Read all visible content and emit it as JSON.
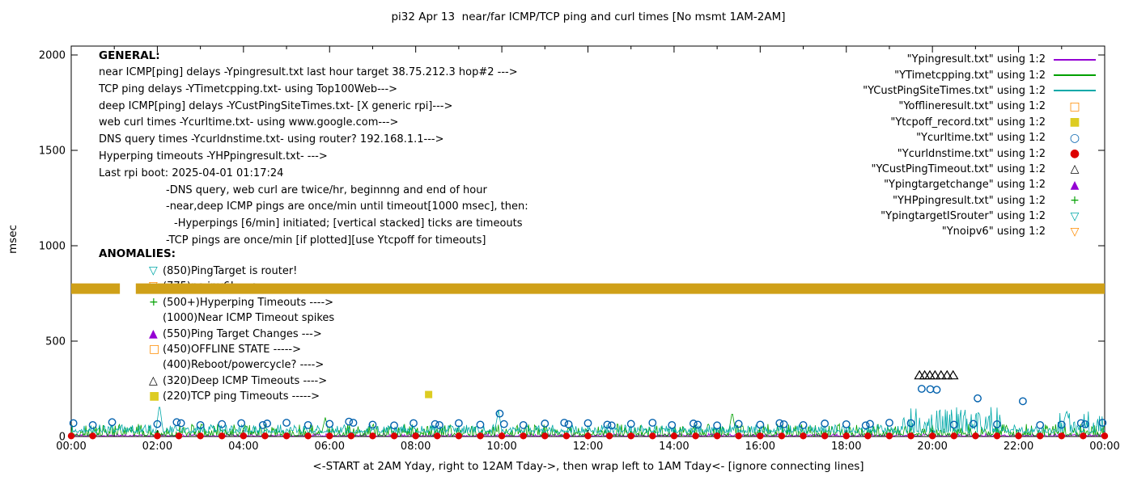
{
  "chart_data": {
    "type": "line",
    "title": "pi32 Apr 13  near/far ICMP/TCP ping and curl times [No msmt 1AM-2AM]",
    "xlabel": "<-START at 2AM Yday, right to 12AM Tday->, then wrap left to 1AM Tday<- [ignore connecting lines]",
    "ylabel": "msec",
    "xlim": [
      0,
      24
    ],
    "ylim": [
      0,
      2000
    ],
    "grid": false,
    "legend_position": "top-right",
    "xticks": [
      {
        "v": 0,
        "label": "00:00"
      },
      {
        "v": 2,
        "label": "02:00"
      },
      {
        "v": 4,
        "label": "04:00"
      },
      {
        "v": 6,
        "label": "06:00"
      },
      {
        "v": 8,
        "label": "08:00"
      },
      {
        "v": 10,
        "label": "10:00"
      },
      {
        "v": 12,
        "label": "12:00"
      },
      {
        "v": 14,
        "label": "14:00"
      },
      {
        "v": 16,
        "label": "16:00"
      },
      {
        "v": 18,
        "label": "18:00"
      },
      {
        "v": 20,
        "label": "20:00"
      },
      {
        "v": 22,
        "label": "22:00"
      },
      {
        "v": 24,
        "label": "00:00"
      }
    ],
    "yticks": [
      {
        "v": 0,
        "label": "0"
      },
      {
        "v": 500,
        "label": "500"
      },
      {
        "v": 1000,
        "label": "1000"
      },
      {
        "v": 1500,
        "label": "1500"
      },
      {
        "v": 2000,
        "label": "2000"
      }
    ],
    "series": [
      {
        "key": "near_icmp",
        "legend_label": "\"Ypingresult.txt\" using 1:2",
        "render": "noise-line",
        "color": "#9400d3",
        "base": 2,
        "amp": 14,
        "pow": 3,
        "seed": 101,
        "step": 0.02
      },
      {
        "key": "tcp_ping",
        "legend_label": "\"YTimetcpping.txt\" using 1:2",
        "render": "noise-line",
        "color": "#00a000",
        "base": 4,
        "amp": 62,
        "pow": 2.6,
        "seed": 202,
        "step": 0.02,
        "spikes": [
          [
            5.9,
            100
          ],
          [
            15.35,
            130
          ]
        ]
      },
      {
        "key": "deep_icmp",
        "legend_label": "\"YCustPingSiteTimes.txt\" using 1:2",
        "render": "noise-line",
        "color": "#00a8a8",
        "base": 20,
        "amp": 42,
        "pow": 2.2,
        "seed": 303,
        "step": 0.02,
        "regions": [
          [
            19.3,
            21.6,
            135
          ],
          [
            22.8,
            24,
            115
          ]
        ],
        "spikes": [
          [
            2.05,
            170
          ],
          [
            9.92,
            140
          ]
        ]
      },
      {
        "key": "offline",
        "legend_label": "\"Yofflineresult.txt\" using 1:2",
        "render": "points",
        "marker": "square-open",
        "color": "#ff8c00",
        "points": []
      },
      {
        "key": "tcpoff",
        "legend_label": "\"Ytcpoff_record.txt\" using 1:2",
        "render": "points",
        "marker": "square-filled",
        "color": "#ddcc22",
        "points": [
          [
            8.3,
            220
          ]
        ]
      },
      {
        "key": "curl",
        "legend_label": "\"Ycurltime.txt\" using 1:2",
        "render": "points",
        "marker": "circle-open",
        "color": "#0060ad",
        "points": [
          [
            0.05,
            70
          ],
          [
            0.5,
            60
          ],
          [
            0.95,
            75
          ],
          [
            2,
            65
          ],
          [
            2.45,
            75
          ],
          [
            2.55,
            70
          ],
          [
            3,
            60
          ],
          [
            3.5,
            65
          ],
          [
            3.95,
            70
          ],
          [
            4.45,
            60
          ],
          [
            4.55,
            68
          ],
          [
            5,
            72
          ],
          [
            5.5,
            60
          ],
          [
            6,
            66
          ],
          [
            6.45,
            78
          ],
          [
            6.55,
            72
          ],
          [
            7,
            62
          ],
          [
            7.5,
            58
          ],
          [
            7.95,
            70
          ],
          [
            8.45,
            65
          ],
          [
            8.55,
            60
          ],
          [
            9,
            70
          ],
          [
            9.5,
            62
          ],
          [
            9.95,
            120
          ],
          [
            10.05,
            65
          ],
          [
            10.5,
            60
          ],
          [
            11,
            68
          ],
          [
            11.45,
            72
          ],
          [
            11.55,
            64
          ],
          [
            12,
            70
          ],
          [
            12.45,
            62
          ],
          [
            12.55,
            58
          ],
          [
            13,
            66
          ],
          [
            13.5,
            72
          ],
          [
            13.95,
            60
          ],
          [
            14.45,
            68
          ],
          [
            14.55,
            62
          ],
          [
            15,
            58
          ],
          [
            15.5,
            66
          ],
          [
            16,
            62
          ],
          [
            16.45,
            70
          ],
          [
            16.55,
            64
          ],
          [
            17,
            60
          ],
          [
            17.5,
            68
          ],
          [
            18,
            64
          ],
          [
            18.45,
            58
          ],
          [
            18.55,
            66
          ],
          [
            19,
            72
          ],
          [
            19.5,
            70
          ],
          [
            19.75,
            250
          ],
          [
            19.95,
            248
          ],
          [
            20.1,
            245
          ],
          [
            20.5,
            62
          ],
          [
            20.95,
            66
          ],
          [
            21.05,
            200
          ],
          [
            21.5,
            64
          ],
          [
            22.1,
            185
          ],
          [
            22.5,
            60
          ],
          [
            23,
            62
          ],
          [
            23.45,
            70
          ],
          [
            23.55,
            64
          ],
          [
            23.95,
            72
          ]
        ]
      },
      {
        "key": "dns",
        "legend_label": "\"Ycurldnstime.txt\" using 1:2",
        "render": "points",
        "marker": "circle-filled",
        "color": "#dd0000",
        "points": [
          [
            0,
            3
          ],
          [
            0.5,
            3
          ],
          [
            2,
            3
          ],
          [
            2.5,
            3
          ],
          [
            3,
            3
          ],
          [
            3.5,
            3
          ],
          [
            4,
            3
          ],
          [
            4.5,
            3
          ],
          [
            5,
            3
          ],
          [
            5.5,
            3
          ],
          [
            6,
            3
          ],
          [
            6.5,
            3
          ],
          [
            7,
            3
          ],
          [
            7.5,
            3
          ],
          [
            8,
            3
          ],
          [
            8.5,
            3
          ],
          [
            9,
            3
          ],
          [
            9.5,
            3
          ],
          [
            10,
            3
          ],
          [
            10.5,
            3
          ],
          [
            11,
            3
          ],
          [
            11.5,
            3
          ],
          [
            12,
            3
          ],
          [
            12.5,
            3
          ],
          [
            13,
            3
          ],
          [
            13.5,
            3
          ],
          [
            14,
            3
          ],
          [
            14.5,
            3
          ],
          [
            15,
            3
          ],
          [
            15.5,
            3
          ],
          [
            16,
            3
          ],
          [
            16.5,
            3
          ],
          [
            17,
            3
          ],
          [
            17.5,
            3
          ],
          [
            18,
            3
          ],
          [
            18.5,
            3
          ],
          [
            19,
            3
          ],
          [
            19.5,
            3
          ],
          [
            20,
            3
          ],
          [
            20.5,
            3
          ],
          [
            21,
            3
          ],
          [
            21.5,
            3
          ],
          [
            22,
            3
          ],
          [
            22.5,
            3
          ],
          [
            23,
            3
          ],
          [
            23.5,
            3
          ],
          [
            24,
            3
          ]
        ]
      },
      {
        "key": "deep_timeout",
        "legend_label": "\"YCustPingTimeout.txt\" using 1:2",
        "render": "points",
        "marker": "tri-up-open",
        "color": "#000000",
        "points": [
          [
            19.7,
            320
          ],
          [
            19.82,
            320
          ],
          [
            19.94,
            320
          ],
          [
            20.06,
            320
          ],
          [
            20.2,
            320
          ],
          [
            20.34,
            320
          ],
          [
            20.48,
            320
          ]
        ]
      },
      {
        "key": "target_change",
        "legend_label": "\"Ypingtargetchange\" using 1:2",
        "render": "points",
        "marker": "tri-up-filled",
        "color": "#9400d3",
        "points": []
      },
      {
        "key": "hyperping",
        "legend_label": "\"YHPpingresult.txt\" using 1:2",
        "render": "points",
        "marker": "plus",
        "color": "#00a000",
        "points": []
      },
      {
        "key": "target_is_router",
        "legend_label": "\"YpingtargetISrouter\" using 1:2",
        "render": "points",
        "marker": "tri-down-open",
        "color": "#00a8a8",
        "points": []
      },
      {
        "key": "noipv6",
        "legend_label": "\"Ynoipv6\" using 1:2",
        "render": "band",
        "marker": "tri-down-open",
        "color": "#cfa018",
        "legend_color": "#ff8c00",
        "band_y": 775,
        "band_height": 13,
        "band_segments": [
          [
            0,
            1.13
          ],
          [
            1.5,
            24
          ]
        ]
      }
    ]
  },
  "annotations": {
    "general": {
      "heading": "GENERAL:",
      "lines": [
        {
          "indent": 0,
          "text": "near ICMP[ping] delays -Ypingresult.txt last hour target 38.75.212.3 hop#2 --->"
        },
        {
          "indent": 0,
          "text": "TCP ping delays -YTimetcpping.txt- using Top100Web--->"
        },
        {
          "indent": 0,
          "text": "deep ICMP[ping] delays -YCustPingSiteTimes.txt- [X generic rpi]--->"
        },
        {
          "indent": 0,
          "text": "web curl times -Ycurltime.txt- using www.google.com--->"
        },
        {
          "indent": 0,
          "text": "DNS query times -Ycurldnstime.txt- using router? 192.168.1.1--->"
        },
        {
          "indent": 0,
          "text": "Hyperping timeouts -YHPpingresult.txt- --->"
        },
        {
          "indent": 0,
          "text": "Last rpi boot: 2025-04-01 01:17:24"
        },
        {
          "indent": 1,
          "text": "-DNS query, web curl are twice/hr, beginnng and end of hour"
        },
        {
          "indent": 1,
          "text": "-near,deep ICMP pings are once/min until timeout[1000 msec], then:"
        },
        {
          "indent": 2,
          "text": "-Hyperpings [6/min] initiated; [vertical stacked] ticks are timeouts"
        },
        {
          "indent": 1,
          "text": "-TCP pings are once/min [if plotted][use Ytcpoff for timeouts]"
        }
      ]
    },
    "anomalies": {
      "heading": "ANOMALIES:",
      "items": [
        {
          "marker": "tri-down-open",
          "color": "#00a8a8",
          "text": "(850)PingTarget is router!"
        },
        {
          "marker": "tri-down-open",
          "color": "#ff8c00",
          "text": "(775)no ipv6! ---->"
        },
        {
          "marker": "plus",
          "color": "#00a000",
          "text": "(500+)Hyperping Timeouts ---->"
        },
        {
          "marker": "none",
          "color": "#000000",
          "text": "(1000)Near ICMP Timeout spikes"
        },
        {
          "marker": "tri-up-filled",
          "color": "#9400d3",
          "text": "(550)Ping Target Changes --->"
        },
        {
          "marker": "square-open",
          "color": "#ff8c00",
          "text": "(450)OFFLINE STATE ----->"
        },
        {
          "marker": "none",
          "color": "#000000",
          "text": "(400)Reboot/powercycle? ---->"
        },
        {
          "marker": "tri-up-open",
          "color": "#000000",
          "text": "(320)Deep ICMP Timeouts ---->"
        },
        {
          "marker": "square-filled",
          "color": "#ddcc22",
          "text": "(220)TCP ping Timeouts ----->"
        }
      ]
    }
  }
}
